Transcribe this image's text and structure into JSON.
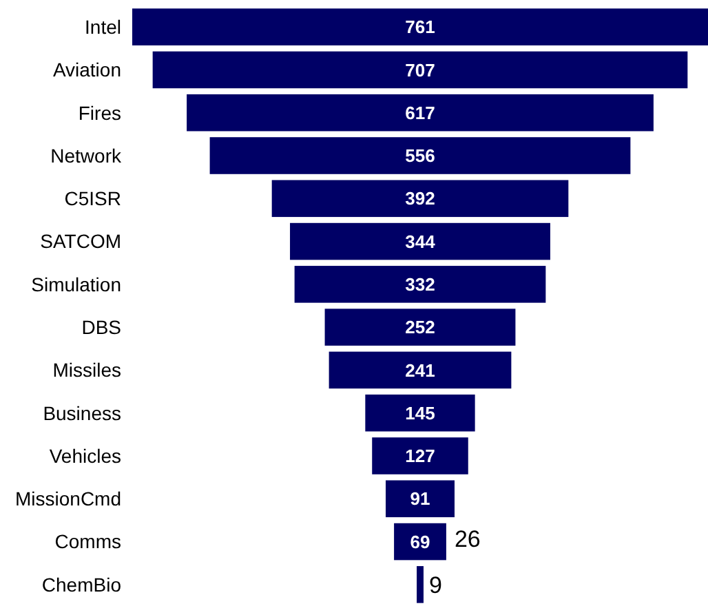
{
  "chart_data": {
    "type": "other",
    "categories": [
      "Intel",
      "Aviation",
      "Fires",
      "Network",
      "C5ISR",
      "SATCOM",
      "Simulation",
      "DBS",
      "Missiles",
      "Business",
      "Vehicles",
      "MissionCmd",
      "Comms",
      "ChemBio"
    ],
    "values": [
      761,
      707,
      617,
      556,
      392,
      344,
      332,
      252,
      241,
      145,
      127,
      91,
      69,
      9
    ],
    "color": "#000066",
    "data_labels": true,
    "annotations": [
      {
        "text": "26",
        "y": "Comms"
      }
    ]
  }
}
